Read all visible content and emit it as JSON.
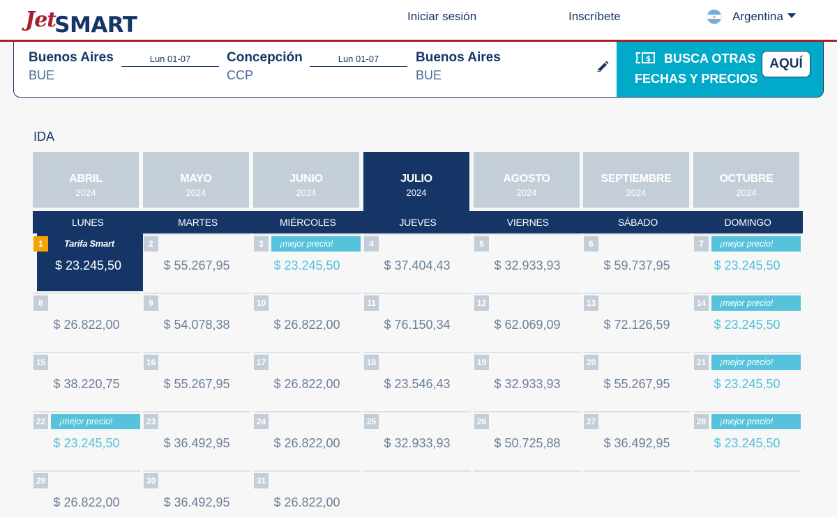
{
  "header": {
    "brand_script": "Jet",
    "brand_bold": "SMART",
    "nav": {
      "login": "Iniciar sesión",
      "signup": "Inscríbete",
      "country": "Argentina",
      "country_flag_icon": "argentina-flag-icon"
    }
  },
  "route": {
    "origin": {
      "name": "Buenos Aires",
      "code": "BUE"
    },
    "outbound_date": "Lun 01-07",
    "destination": {
      "name": "Concepción",
      "code": "CCP"
    },
    "return_date": "Lun 01-07",
    "return_city": {
      "name": "Buenos Aires",
      "code": "BUE"
    },
    "edit_icon": "pencil-icon",
    "promo": {
      "line1": "BUSCA OTRAS",
      "line2": "FECHAS Y PRECIOS",
      "button": "AQUÍ",
      "icon": "money-bill-icon"
    }
  },
  "colors": {
    "brand_navy": "#163567",
    "brand_red": "#a8202d",
    "accent_teal": "#00aac8",
    "best_price": "#52c0da",
    "selected_day": "#f5a300",
    "inactive_tab": "#c4ced8"
  },
  "calendar": {
    "section_title": "IDA",
    "months": [
      {
        "name": "ABRIL",
        "year": "2024",
        "active": false
      },
      {
        "name": "MAYO",
        "year": "2024",
        "active": false
      },
      {
        "name": "JUNIO",
        "year": "2024",
        "active": false
      },
      {
        "name": "JULIO",
        "year": "2024",
        "active": true
      },
      {
        "name": "AGOSTO",
        "year": "2024",
        "active": false
      },
      {
        "name": "SEPTIEMBRE",
        "year": "2024",
        "active": false
      },
      {
        "name": "OCTUBRE",
        "year": "2024",
        "active": false
      }
    ],
    "weekdays": [
      "LUNES",
      "MARTES",
      "MIÉRCOLES",
      "JUEVES",
      "VIERNES",
      "SÁBADO",
      "DOMINGO"
    ],
    "best_price_label": "¡mejor precio!",
    "selected_label": "Tarifa Smart",
    "days": [
      {
        "day": "1",
        "price": "$ 23.245,50",
        "selected": true,
        "best": false
      },
      {
        "day": "2",
        "price": "$ 55.267,95",
        "selected": false,
        "best": false
      },
      {
        "day": "3",
        "price": "$ 23.245,50",
        "selected": false,
        "best": true
      },
      {
        "day": "4",
        "price": "$ 37.404,43",
        "selected": false,
        "best": false
      },
      {
        "day": "5",
        "price": "$ 32.933,93",
        "selected": false,
        "best": false
      },
      {
        "day": "6",
        "price": "$ 59.737,95",
        "selected": false,
        "best": false
      },
      {
        "day": "7",
        "price": "$ 23.245,50",
        "selected": false,
        "best": true
      },
      {
        "day": "8",
        "price": "$ 26.822,00",
        "selected": false,
        "best": false
      },
      {
        "day": "9",
        "price": "$ 54.078,38",
        "selected": false,
        "best": false
      },
      {
        "day": "10",
        "price": "$ 26.822,00",
        "selected": false,
        "best": false
      },
      {
        "day": "11",
        "price": "$ 76.150,34",
        "selected": false,
        "best": false
      },
      {
        "day": "12",
        "price": "$ 62.069,09",
        "selected": false,
        "best": false
      },
      {
        "day": "13",
        "price": "$ 72.126,59",
        "selected": false,
        "best": false
      },
      {
        "day": "14",
        "price": "$ 23.245,50",
        "selected": false,
        "best": true
      },
      {
        "day": "15",
        "price": "$ 38.220,75",
        "selected": false,
        "best": false
      },
      {
        "day": "16",
        "price": "$ 55.267,95",
        "selected": false,
        "best": false
      },
      {
        "day": "17",
        "price": "$ 26.822,00",
        "selected": false,
        "best": false
      },
      {
        "day": "18",
        "price": "$ 23.546,43",
        "selected": false,
        "best": false
      },
      {
        "day": "19",
        "price": "$ 32.933,93",
        "selected": false,
        "best": false
      },
      {
        "day": "20",
        "price": "$ 55.267,95",
        "selected": false,
        "best": false
      },
      {
        "day": "21",
        "price": "$ 23.245,50",
        "selected": false,
        "best": true
      },
      {
        "day": "22",
        "price": "$ 23.245,50",
        "selected": false,
        "best": true
      },
      {
        "day": "23",
        "price": "$ 36.492,95",
        "selected": false,
        "best": false
      },
      {
        "day": "24",
        "price": "$ 26.822,00",
        "selected": false,
        "best": false
      },
      {
        "day": "25",
        "price": "$ 32.933,93",
        "selected": false,
        "best": false
      },
      {
        "day": "26",
        "price": "$ 50.725,88",
        "selected": false,
        "best": false
      },
      {
        "day": "27",
        "price": "$ 36.492,95",
        "selected": false,
        "best": false
      },
      {
        "day": "28",
        "price": "$ 23.245,50",
        "selected": false,
        "best": true
      },
      {
        "day": "29",
        "price": "$ 26.822,00",
        "selected": false,
        "best": false
      },
      {
        "day": "30",
        "price": "$ 36.492,95",
        "selected": false,
        "best": false
      },
      {
        "day": "31",
        "price": "$ 26.822,00",
        "selected": false,
        "best": false
      }
    ]
  }
}
